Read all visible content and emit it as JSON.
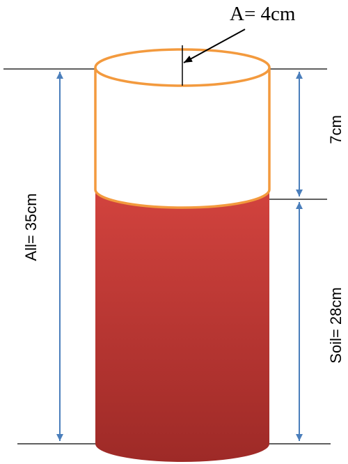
{
  "labels": {
    "radius": "A= 4cm",
    "total_height": "All= 35cm",
    "top_gap": "7cm",
    "soil_height": "Soil= 28cm"
  },
  "colors": {
    "cylinder_outline": "#F39A3E",
    "soil_top": "#D2433E",
    "soil_bottom": "#9E2A27",
    "dimension_arrow": "#4A7EBB",
    "reference_line": "#000000",
    "leader_arrow": "#000000"
  }
}
